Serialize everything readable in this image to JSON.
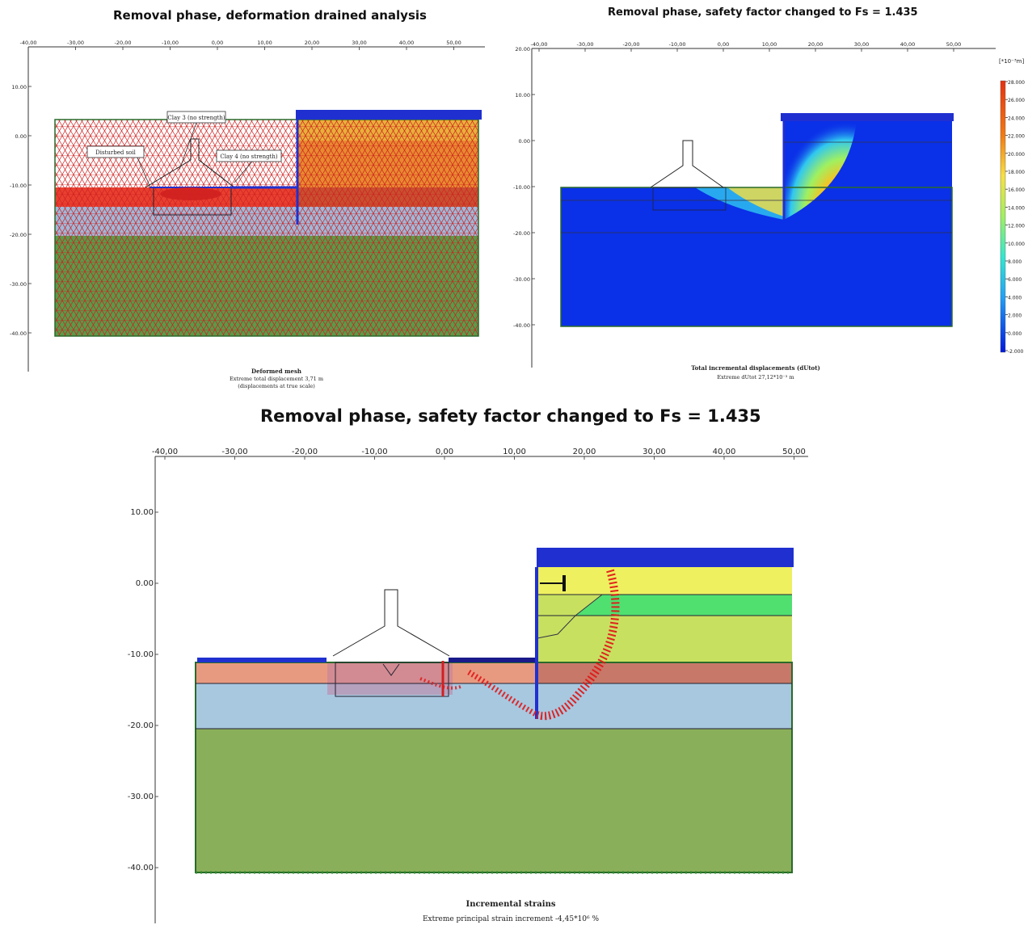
{
  "titles": {
    "top_left": "Removal phase, deformation drained analysis",
    "top_right": "Removal phase, safety factor changed to Fs = 1.435",
    "bottom": "Removal phase, safety factor changed to Fs = 1.435"
  },
  "panel_tl": {
    "x_ticks": [
      "-40,00",
      "-30,00",
      "-20,00",
      "-10,00",
      "0,00",
      "10,00",
      "20,00",
      "30,00",
      "40,00",
      "50,00"
    ],
    "y_ticks": [
      "10.00",
      "0.00",
      "-10.00",
      "-20.00",
      "-30.00",
      "-40.00"
    ],
    "labels": [
      "Clay 3 (no strength)",
      "Disturbed soil",
      "Clay 4 (no strength)"
    ],
    "caption_title": "Deformed mesh",
    "caption_line1": "Extreme total displacement 3,71 m",
    "caption_line2": "(displacements at true scale)"
  },
  "panel_tr": {
    "x_ticks": [
      "-40,00",
      "-30,00",
      "-20,00",
      "-10,00",
      "0,00",
      "10,00",
      "20,00",
      "30,00",
      "40,00",
      "50,00"
    ],
    "y_ticks": [
      "20.00",
      "10.00",
      "0.00",
      "-10.00",
      "-20.00",
      "-30.00",
      "-40.00"
    ],
    "legend_unit": "[*10⁻³m]",
    "legend_values": [
      "28.000",
      "26.000",
      "24.000",
      "22.000",
      "20.000",
      "18.000",
      "16.000",
      "14.000",
      "12.000",
      "10.000",
      "8.000",
      "6.000",
      "4.000",
      "2.000",
      "0.000",
      "-2.000"
    ],
    "legend_colors": [
      "#e83010",
      "#f05010",
      "#f57a10",
      "#f8a010",
      "#fac020",
      "#f8e040",
      "#d8f040",
      "#a0f060",
      "#60f0a0",
      "#30e8d0",
      "#20c8f0",
      "#20a0f8",
      "#1878f8",
      "#1050f0",
      "#0a30e8",
      "#0018e0"
    ],
    "caption_title": "Total incremental displacements (dUtot)",
    "caption_line1": "Extreme dUtot 27,12*10⁻³ m"
  },
  "panel_bottom": {
    "x_ticks": [
      "-40,00",
      "-30,00",
      "-20,00",
      "-10,00",
      "0,00",
      "10,00",
      "20,00",
      "30,00",
      "40,00",
      "50,00"
    ],
    "y_ticks": [
      "10.00",
      "0.00",
      "-10.00",
      "-20.00",
      "-30.00",
      "-40.00"
    ],
    "caption_title": "Incremental strains",
    "caption_line1": "Extreme principal strain increment -4,45*10⁶ %"
  }
}
